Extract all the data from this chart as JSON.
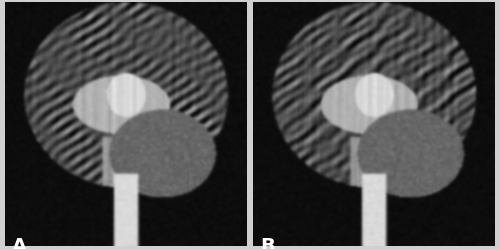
{
  "label_A": "A",
  "label_B": "B",
  "label_color": "white",
  "label_fontsize": 14,
  "label_fontweight": "bold",
  "background_color": "#1a1a1a",
  "border_color": "white",
  "border_linewidth": 1.5,
  "fig_width": 5.0,
  "fig_height": 2.49,
  "dpi": 100,
  "outer_bg": "#d0d0d0"
}
